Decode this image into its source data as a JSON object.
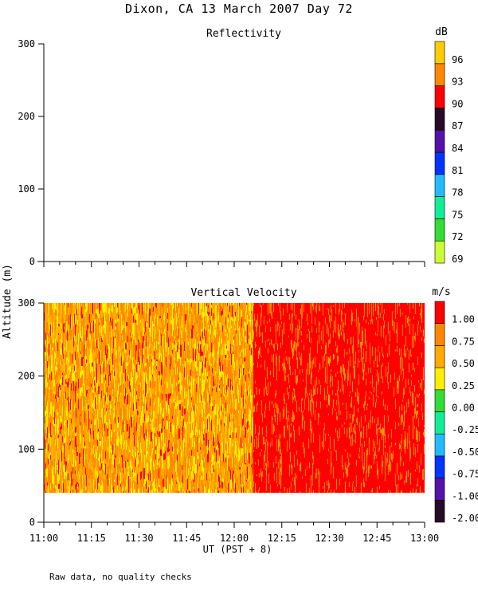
{
  "title": "Dixon, CA 13 March 2007  Day  72",
  "footnote": "Raw data, no quality checks",
  "shared_ylabel": "Altitude (m)",
  "shared_xlabel": "UT  (PST + 8)",
  "chart_data": [
    {
      "type": "heatmap",
      "title": "Reflectivity",
      "xlabel": "UT  (PST + 8)",
      "ylabel": "Altitude (m)",
      "x_ticks": [
        "11:00",
        "11:15",
        "11:30",
        "11:45",
        "12:00",
        "12:15",
        "12:30",
        "12:45",
        "13:00"
      ],
      "xlim": [
        "11:00",
        "13:00"
      ],
      "y_ticks": [
        0,
        100,
        200,
        300
      ],
      "ylim": [
        0,
        300
      ],
      "colorbar": {
        "unit": "dB",
        "ticks": [
          "69",
          "72",
          "75",
          "78",
          "81",
          "84",
          "87",
          "90",
          "93",
          "96"
        ],
        "colors": [
          "#ccff33",
          "#33dd33",
          "#11ee99",
          "#22bbff",
          "#0033ff",
          "#5511aa",
          "#2a0a2a",
          "#ff0000",
          "#ff8800",
          "#ffcc00"
        ]
      },
      "data": "no echoes shown"
    },
    {
      "type": "heatmap",
      "title": "Vertical Velocity",
      "xlabel": "UT  (PST + 8)",
      "ylabel": "Altitude (m)",
      "x_ticks": [
        "11:00",
        "11:15",
        "11:30",
        "11:45",
        "12:00",
        "12:15",
        "12:30",
        "12:45",
        "13:00"
      ],
      "xlim": [
        "11:00",
        "13:00"
      ],
      "y_ticks": [
        0,
        100,
        200,
        300
      ],
      "ylim": [
        0,
        300
      ],
      "colorbar": {
        "unit": "m/s",
        "ticks": [
          "-2.00",
          "-1.00",
          "-0.75",
          "-0.50",
          "-0.25",
          "0.00",
          "0.25",
          "0.50",
          "0.75",
          "1.00"
        ],
        "colors": [
          "#2a0a2a",
          "#5511aa",
          "#0033ff",
          "#22bbff",
          "#11ee99",
          "#33dd33",
          "#ffee00",
          "#ffaa00",
          "#ff8800",
          "#ff0000"
        ]
      },
      "data_extent": {
        "time_range": [
          "11:00",
          "13:00"
        ],
        "altitude_range_m": [
          40,
          300
        ]
      },
      "segments": [
        {
          "time_range": [
            "11:00",
            "12:06"
          ],
          "mean_velocity_ms": 0.6,
          "dominant_colors": [
            "#ffaa00",
            "#ff8800",
            "#ffee00"
          ]
        },
        {
          "time_range": [
            "12:06",
            "13:00"
          ],
          "mean_velocity_ms": 1.0,
          "dominant_colors": [
            "#ff0000",
            "#ff8800"
          ]
        }
      ]
    }
  ]
}
